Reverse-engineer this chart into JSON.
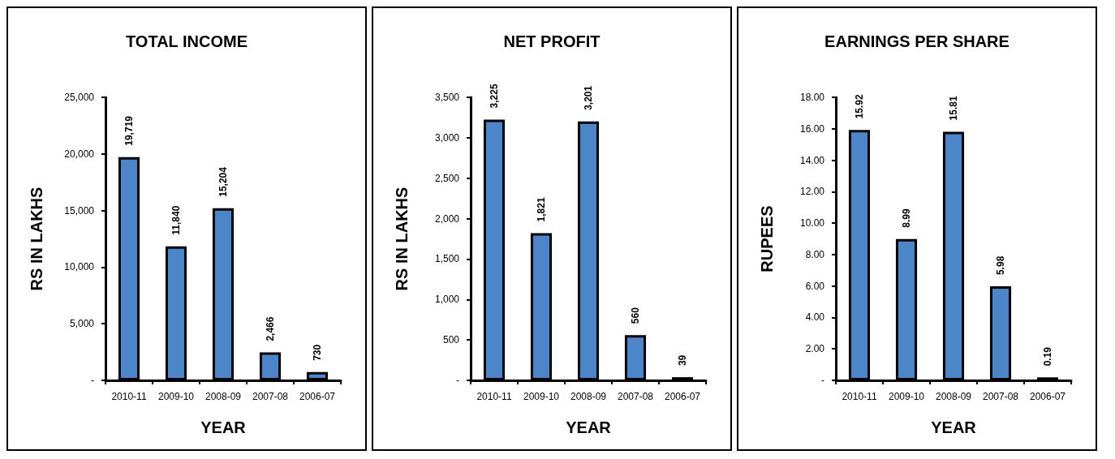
{
  "chart_data": [
    {
      "type": "bar",
      "title": "TOTAL INCOME",
      "xlabel": "YEAR",
      "ylabel": "RS IN LAKHS",
      "categories": [
        "2010-11",
        "2009-10",
        "2008-09",
        "2007-08",
        "2006-07"
      ],
      "values": [
        19719,
        11840,
        15204,
        2466,
        730
      ],
      "value_labels": [
        "19,719",
        "11,840",
        "15,204",
        "2,466",
        "730"
      ],
      "color": "#4a86c8",
      "ylim": [
        0,
        25000
      ],
      "yticks": [
        {
          "value": 0,
          "label": "-"
        },
        {
          "value": 5000,
          "label": "5,000"
        },
        {
          "value": 10000,
          "label": "10,000"
        },
        {
          "value": 15000,
          "label": "15,000"
        },
        {
          "value": 20000,
          "label": "20,000"
        },
        {
          "value": 25000,
          "label": "25,000"
        }
      ]
    },
    {
      "type": "bar",
      "title": "NET PROFIT",
      "xlabel": "YEAR",
      "ylabel": "RS IN LAKHS",
      "categories": [
        "2010-11",
        "2009-10",
        "2008-09",
        "2007-08",
        "2006-07"
      ],
      "values": [
        3225,
        1821,
        3201,
        560,
        39
      ],
      "value_labels": [
        "3,225",
        "1,821",
        "3,201",
        "560",
        "39"
      ],
      "color": "#4a86c8",
      "ylim": [
        0,
        3500
      ],
      "yticks": [
        {
          "value": 0,
          "label": "-"
        },
        500,
        {
          "value": 1000,
          "label": "1,000"
        },
        {
          "value": 1500,
          "label": "1,500"
        },
        {
          "value": 2000,
          "label": "2,000"
        },
        {
          "value": 2500,
          "label": "2,500"
        },
        {
          "value": 3000,
          "label": "3,000"
        },
        {
          "value": 3500,
          "label": "3,500"
        }
      ]
    },
    {
      "type": "bar",
      "title": "EARNINGS PER SHARE",
      "xlabel": "YEAR",
      "ylabel": "RUPEES",
      "categories": [
        "2010-11",
        "2009-10",
        "2008-09",
        "2007-08",
        "2006-07"
      ],
      "values": [
        15.92,
        8.99,
        15.81,
        5.98,
        0.19
      ],
      "value_labels": [
        "15.92",
        "8.99",
        "15.81",
        "5.98",
        "0.19"
      ],
      "color": "#4a86c8",
      "ylim": [
        0,
        18
      ],
      "yticks": [
        {
          "value": 0,
          "label": "-"
        },
        {
          "value": 2,
          "label": "2.00"
        },
        {
          "value": 4,
          "label": "4.00"
        },
        {
          "value": 6,
          "label": "6.00"
        },
        {
          "value": 8,
          "label": "8.00"
        },
        {
          "value": 10,
          "label": "10.00"
        },
        {
          "value": 12,
          "label": "12.00"
        },
        {
          "value": 14,
          "label": "14.00"
        },
        {
          "value": 16,
          "label": "16.00"
        },
        {
          "value": 18,
          "label": "18.00"
        }
      ]
    }
  ]
}
